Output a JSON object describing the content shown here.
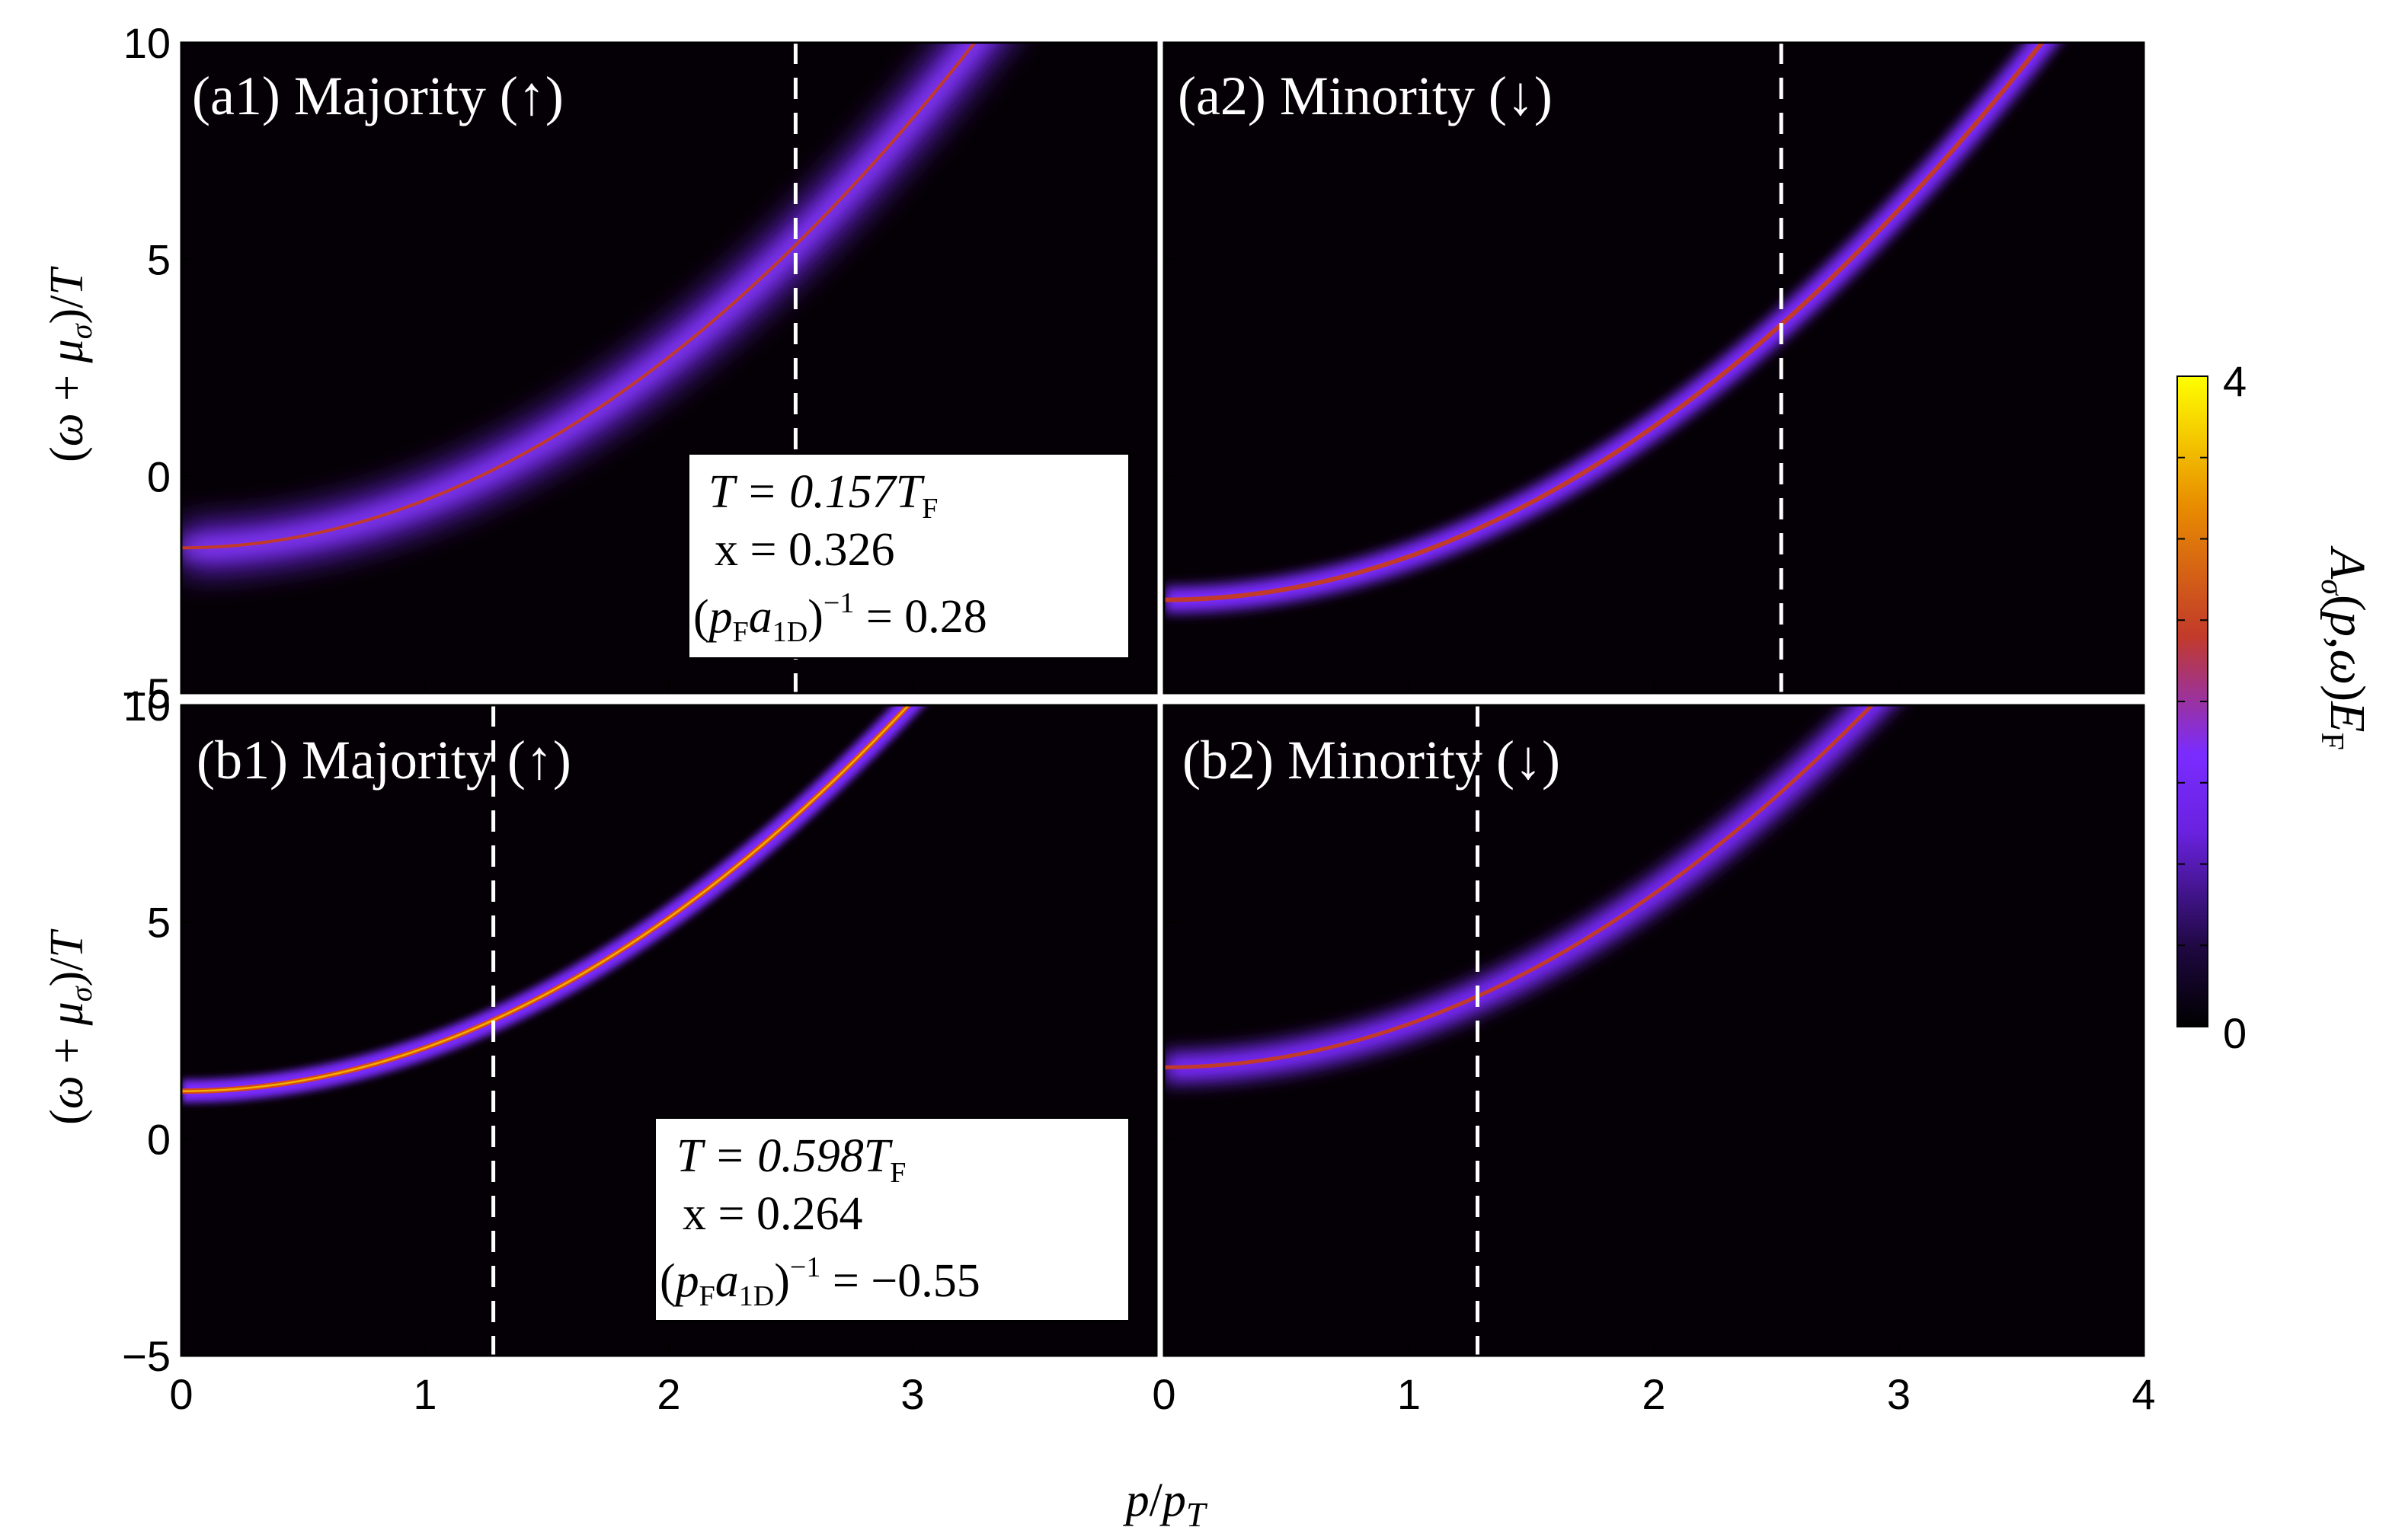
{
  "chart_data": {
    "type": "heatmap",
    "xlabel": "p/p_T",
    "ylabel": "(ω + μ_σ)/T",
    "xlim": [
      0,
      4
    ],
    "ylim": [
      -5,
      10
    ],
    "x_ticks_left": [
      "0",
      "1",
      "2",
      "3"
    ],
    "x_ticks_right": [
      "0",
      "1",
      "2",
      "3",
      "4"
    ],
    "y_ticks": [
      "−5",
      "0",
      "5",
      "10"
    ],
    "colorbar": {
      "label": "A_σ(p,ω)E_F",
      "range": [
        0,
        4
      ],
      "tick_labels": [
        "0",
        "4"
      ],
      "colors": [
        "#000000",
        "#2a0a55",
        "#7a2cff",
        "#c23a2a",
        "#e88c00",
        "#ffff00"
      ]
    },
    "panels": [
      {
        "id": "a1",
        "title": "(a1) Majority (↑)",
        "dispersion": {
          "offset": -1.65,
          "curvature": 1.1
        },
        "width": "broad",
        "dashed_x": 2.52,
        "info_box": {
          "T": "T = 0.157T",
          "T_sub": "F",
          "x": "x = 0.326",
          "coupling": "= 0.28",
          "coupling_sup": "−1"
        }
      },
      {
        "id": "a2",
        "title": "(a2) Minority (↓)",
        "dispersion": {
          "offset": -2.85,
          "curvature": 1.0
        },
        "width": "narrow",
        "dashed_x": 2.52
      },
      {
        "id": "b1",
        "title": "(b1) Majority (↑)",
        "dispersion": {
          "offset": 1.1,
          "curvature": 1.0
        },
        "width": "sharp",
        "dashed_x": 1.28,
        "info_box": {
          "T": "T = 0.598T",
          "T_sub": "F",
          "x": "x = 0.264",
          "coupling": "= −0.55",
          "coupling_sup": "−1"
        }
      },
      {
        "id": "b2",
        "title": "(b2) Minority (↓)",
        "dispersion": {
          "offset": 1.65,
          "curvature": 1.0
        },
        "width": "medium",
        "dashed_x": 1.28
      }
    ]
  }
}
